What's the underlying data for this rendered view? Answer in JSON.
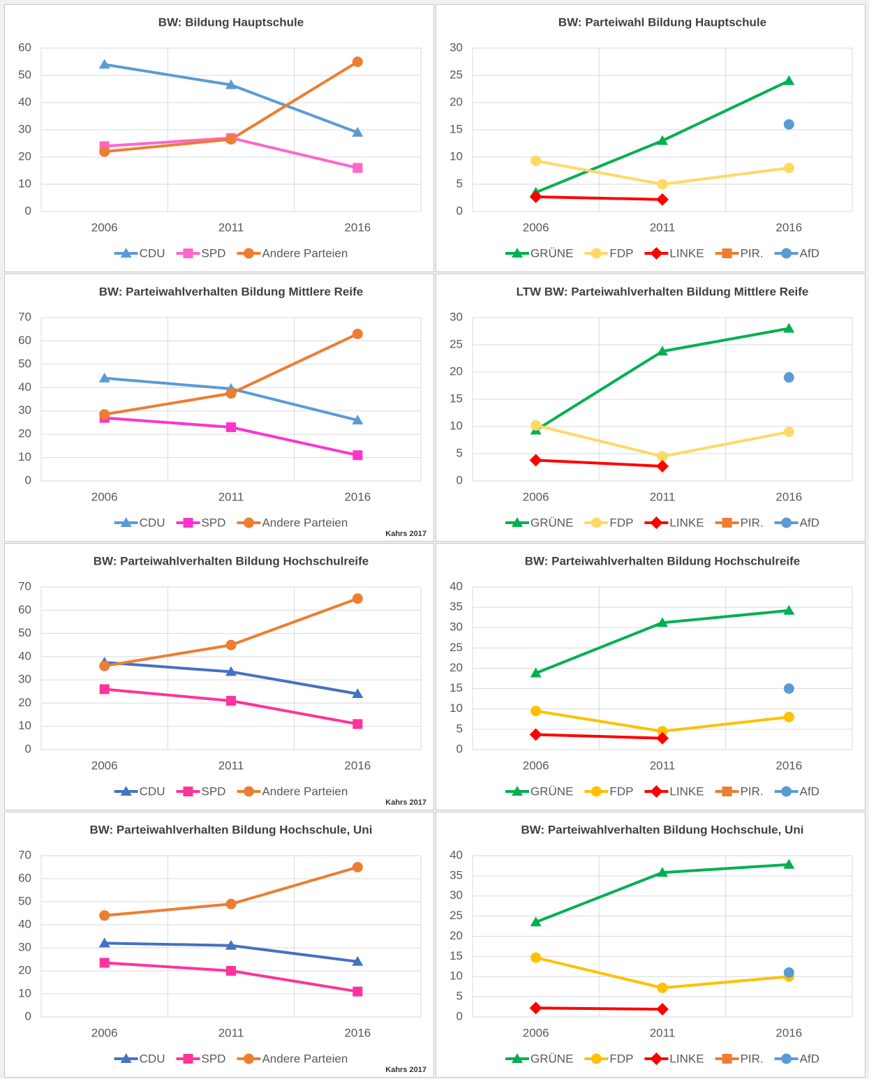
{
  "chart_data": [
    {
      "type": "line",
      "title": "BW: Bildung Hauptschule",
      "categories": [
        "2006",
        "2011",
        "2016"
      ],
      "ylim": [
        0,
        60
      ],
      "yticks": [
        0,
        10,
        20,
        30,
        40,
        50,
        60
      ],
      "grid": true,
      "series": [
        {
          "name": "CDU",
          "color": "#5b9bd5",
          "marker": "triangle",
          "values": [
            54,
            46.5,
            29
          ]
        },
        {
          "name": "SPD",
          "color": "#ff66cc",
          "marker": "square",
          "values": [
            24,
            27,
            16
          ]
        },
        {
          "name": "Andere Parteien",
          "color": "#ed7d31",
          "marker": "circle",
          "values": [
            22,
            26.5,
            55
          ]
        }
      ]
    },
    {
      "type": "line",
      "title": "BW: Parteiwahl Bildung Hauptschule",
      "categories": [
        "2006",
        "2011",
        "2016"
      ],
      "ylim": [
        0,
        30
      ],
      "yticks": [
        0,
        5,
        10,
        15,
        20,
        25,
        30
      ],
      "grid": true,
      "series": [
        {
          "name": "GRÜNE",
          "color": "#00b050",
          "marker": "triangle",
          "values": [
            3.5,
            13,
            24
          ]
        },
        {
          "name": "FDP",
          "color": "#ffd966",
          "marker": "circle",
          "values": [
            9.3,
            5,
            8
          ]
        },
        {
          "name": "LINKE",
          "color": "#ff0000",
          "marker": "diamond",
          "values": [
            2.7,
            2.2,
            null
          ]
        },
        {
          "name": "PIR.",
          "color": "#ed7d31",
          "marker": "square",
          "values": [
            null,
            null,
            null
          ]
        },
        {
          "name": "AfD",
          "color": "#5b9bd5",
          "marker": "circle",
          "values": [
            null,
            null,
            16
          ]
        }
      ]
    },
    {
      "type": "line",
      "title": "BW: Parteiwahlverhalten Bildung Mittlere Reife",
      "annotation": "Kahrs 2017",
      "categories": [
        "2006",
        "2011",
        "2016"
      ],
      "ylim": [
        0,
        70
      ],
      "yticks": [
        0,
        10,
        20,
        30,
        40,
        50,
        60,
        70
      ],
      "grid": true,
      "series": [
        {
          "name": "CDU",
          "color": "#5b9bd5",
          "marker": "triangle",
          "values": [
            44,
            39.5,
            26
          ]
        },
        {
          "name": "SPD",
          "color": "#ff33cc",
          "marker": "square",
          "values": [
            27,
            23,
            11
          ]
        },
        {
          "name": "Andere Parteien",
          "color": "#ed7d31",
          "marker": "circle",
          "values": [
            28.5,
            37.5,
            63
          ]
        }
      ]
    },
    {
      "type": "line",
      "title": "LTW BW: Parteiwahlverhalten Bildung Mittlere Reife",
      "categories": [
        "2006",
        "2011",
        "2016"
      ],
      "ylim": [
        0,
        30
      ],
      "yticks": [
        0,
        5,
        10,
        15,
        20,
        25,
        30
      ],
      "grid": true,
      "series": [
        {
          "name": "GRÜNE",
          "color": "#00b050",
          "marker": "triangle",
          "values": [
            9.3,
            23.8,
            28
          ]
        },
        {
          "name": "FDP",
          "color": "#ffd966",
          "marker": "circle",
          "values": [
            10.2,
            4.5,
            9
          ]
        },
        {
          "name": "LINKE",
          "color": "#ff0000",
          "marker": "diamond",
          "values": [
            3.8,
            2.7,
            null
          ]
        },
        {
          "name": "PIR.",
          "color": "#ed7d31",
          "marker": "square",
          "values": [
            null,
            null,
            null
          ]
        },
        {
          "name": "AfD",
          "color": "#5b9bd5",
          "marker": "circle",
          "values": [
            null,
            null,
            19
          ]
        }
      ]
    },
    {
      "type": "line",
      "title": "BW: Parteiwahlverhalten Bildung Hochschulreife",
      "annotation": "Kahrs 2017",
      "categories": [
        "2006",
        "2011",
        "2016"
      ],
      "ylim": [
        0,
        70
      ],
      "yticks": [
        0,
        10,
        20,
        30,
        40,
        50,
        60,
        70
      ],
      "grid": true,
      "series": [
        {
          "name": "CDU",
          "color": "#4472c4",
          "marker": "triangle",
          "values": [
            37.5,
            33.5,
            24
          ]
        },
        {
          "name": "SPD",
          "color": "#ff3399",
          "marker": "square",
          "values": [
            26,
            21,
            11
          ]
        },
        {
          "name": "Andere Parteien",
          "color": "#ed7d31",
          "marker": "circle",
          "values": [
            36,
            45,
            65
          ]
        }
      ]
    },
    {
      "type": "line",
      "title": "BW: Parteiwahlverhalten Bildung Hochschulreife",
      "categories": [
        "2006",
        "2011",
        "2016"
      ],
      "ylim": [
        0,
        40
      ],
      "yticks": [
        0,
        5,
        10,
        15,
        20,
        25,
        30,
        35,
        40
      ],
      "grid": true,
      "series": [
        {
          "name": "GRÜNE",
          "color": "#00b050",
          "marker": "triangle",
          "values": [
            18.8,
            31.2,
            34.2
          ]
        },
        {
          "name": "FDP",
          "color": "#ffc000",
          "marker": "circle",
          "values": [
            9.5,
            4.5,
            8
          ]
        },
        {
          "name": "LINKE",
          "color": "#ff0000",
          "marker": "diamond",
          "values": [
            3.7,
            2.8,
            null
          ]
        },
        {
          "name": "PIR.",
          "color": "#ed7d31",
          "marker": "square",
          "values": [
            null,
            null,
            null
          ]
        },
        {
          "name": "AfD",
          "color": "#5b9bd5",
          "marker": "circle",
          "values": [
            null,
            null,
            15
          ]
        }
      ]
    },
    {
      "type": "line",
      "title": "BW: Parteiwahlverhalten Bildung Hochschule, Uni",
      "annotation": "Kahrs 2017",
      "categories": [
        "2006",
        "2011",
        "2016"
      ],
      "ylim": [
        0,
        70
      ],
      "yticks": [
        0,
        10,
        20,
        30,
        40,
        50,
        60,
        70
      ],
      "grid": true,
      "series": [
        {
          "name": "CDU",
          "color": "#4472c4",
          "marker": "triangle",
          "values": [
            32,
            31,
            24
          ]
        },
        {
          "name": "SPD",
          "color": "#ff3399",
          "marker": "square",
          "values": [
            23.5,
            20,
            11
          ]
        },
        {
          "name": "Andere Parteien",
          "color": "#ed7d31",
          "marker": "circle",
          "values": [
            44,
            49,
            65
          ]
        }
      ]
    },
    {
      "type": "line",
      "title": "BW: Parteiwahlverhalten Bildung Hochschule, Uni",
      "categories": [
        "2006",
        "2011",
        "2016"
      ],
      "ylim": [
        0,
        40
      ],
      "yticks": [
        0,
        5,
        10,
        15,
        20,
        25,
        30,
        35,
        40
      ],
      "grid": true,
      "series": [
        {
          "name": "GRÜNE",
          "color": "#00b050",
          "marker": "triangle",
          "values": [
            23.5,
            35.8,
            37.8
          ]
        },
        {
          "name": "FDP",
          "color": "#ffc000",
          "marker": "circle",
          "values": [
            14.7,
            7.2,
            10
          ]
        },
        {
          "name": "LINKE",
          "color": "#ff0000",
          "marker": "diamond",
          "values": [
            2.2,
            1.9,
            null
          ]
        },
        {
          "name": "PIR.",
          "color": "#ed7d31",
          "marker": "square",
          "values": [
            null,
            null,
            null
          ]
        },
        {
          "name": "AfD",
          "color": "#5b9bd5",
          "marker": "circle",
          "values": [
            null,
            null,
            11
          ]
        }
      ]
    }
  ]
}
